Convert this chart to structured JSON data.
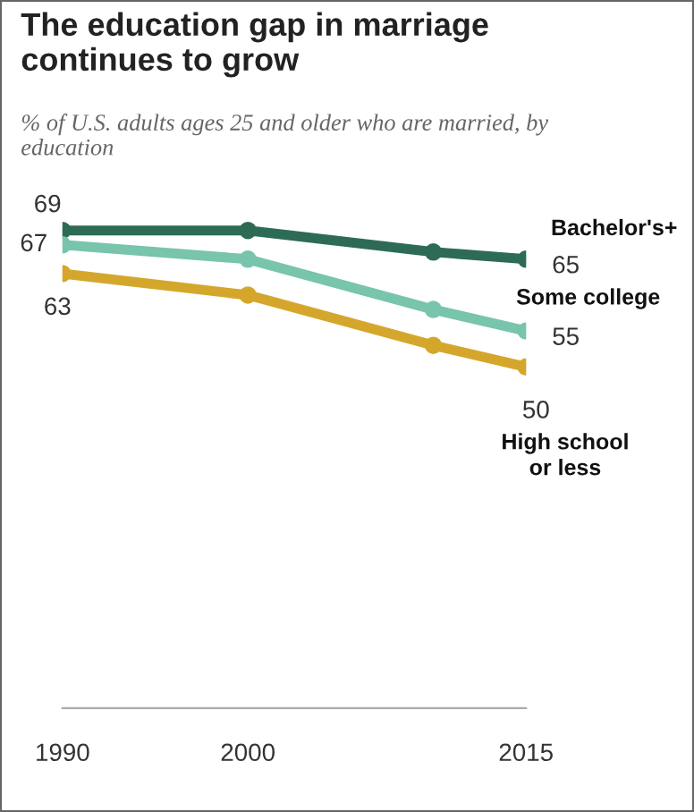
{
  "chart_data": {
    "type": "line",
    "title": "The education gap in marriage\ncontinues to grow",
    "subtitle": "% of U.S. adults ages 25 and older who are married, by\neducation",
    "x": [
      1990,
      2000,
      2010,
      2015
    ],
    "xlim": [
      1990,
      2015
    ],
    "xticks": [
      1990,
      2000,
      2015
    ],
    "tick_labels": "x",
    "grid": false,
    "legend": false,
    "marker": "circle",
    "line_style": "solid",
    "series": [
      {
        "name": "Bachelor's+",
        "color": "#2e6b55",
        "values": [
          69,
          69,
          66,
          65
        ],
        "value_labels": [
          "69",
          null,
          null,
          "65"
        ]
      },
      {
        "name": "Some college",
        "color": "#78c4ac",
        "values": [
          67,
          65,
          58,
          55
        ],
        "value_labels": [
          "67",
          null,
          null,
          "55"
        ]
      },
      {
        "name": "High school\nor less",
        "color": "#d4a72c",
        "values": [
          63,
          60,
          53,
          50
        ],
        "value_labels": [
          "63",
          null,
          null,
          "50"
        ]
      }
    ]
  }
}
